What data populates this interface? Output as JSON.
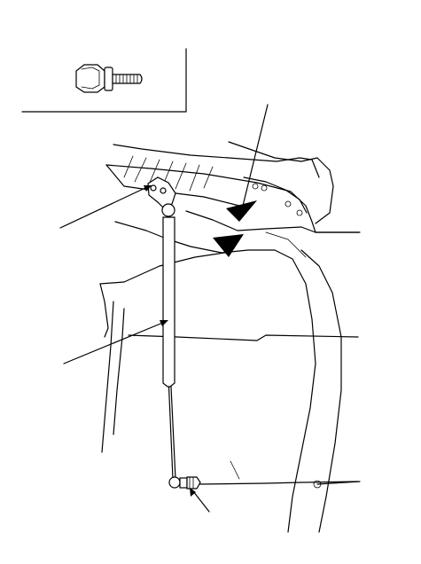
{
  "figure": {
    "labels": [],
    "parts": [
      {
        "name": "flange-bolt",
        "icon": "bolt-icon"
      },
      {
        "name": "tailgate-support-strut",
        "icon": "gas-strut-icon"
      },
      {
        "name": "upper-ball-stud",
        "icon": "ball-stud-icon"
      },
      {
        "name": "lower-ball-stud",
        "icon": "ball-stud-icon"
      },
      {
        "name": "hinge-mounting-point-upper",
        "icon": "triangle-marker-icon"
      },
      {
        "name": "hinge-mounting-point-lower",
        "icon": "triangle-marker-icon"
      }
    ],
    "line_color": "#000000",
    "background_color": "#ffffff"
  }
}
